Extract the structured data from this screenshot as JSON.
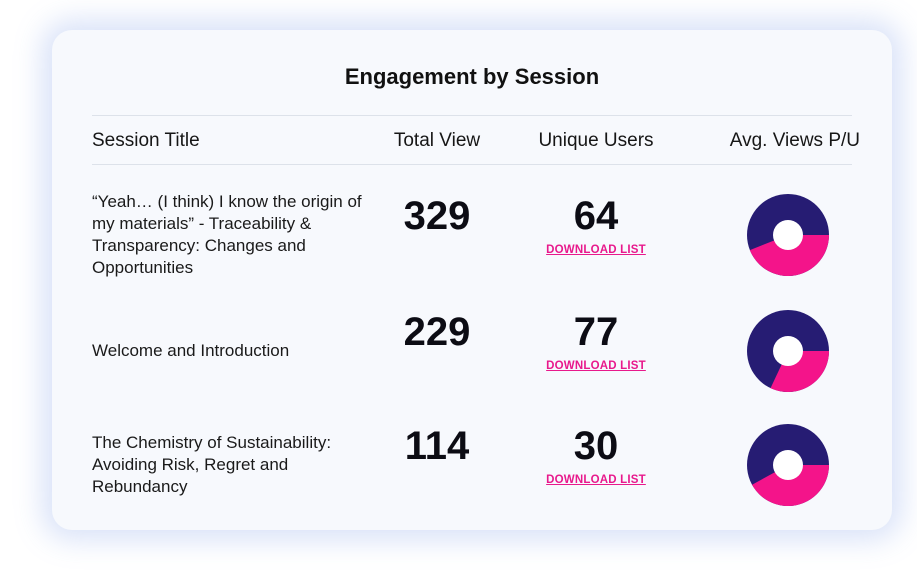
{
  "title": "Engagement by Session",
  "columns": {
    "session": "Session Title",
    "total": "Total View",
    "unique": "Unique Users",
    "avg": "Avg. Views P/U"
  },
  "colors": {
    "dark": "#261c73",
    "pink": "#f4148a",
    "hole": "#ffffff"
  },
  "rows": [
    {
      "session": "“Yeah… (I think) I know the origin of my materials” - Traceability & Transparency: Changes and Opportunities",
      "total": "329",
      "unique": "64",
      "download": "DOWNLOAD LIST",
      "pink_fraction": 0.44
    },
    {
      "session": "Welcome and Introduction",
      "total": "229",
      "unique": "77",
      "download": "DOWNLOAD LIST",
      "pink_fraction": 0.32
    },
    {
      "session": "The Chemistry of Sustainability: Avoiding Risk, Regret and Rebundancy",
      "total": "114",
      "unique": "30",
      "download": "DOWNLOAD LIST",
      "pink_fraction": 0.42
    }
  ]
}
